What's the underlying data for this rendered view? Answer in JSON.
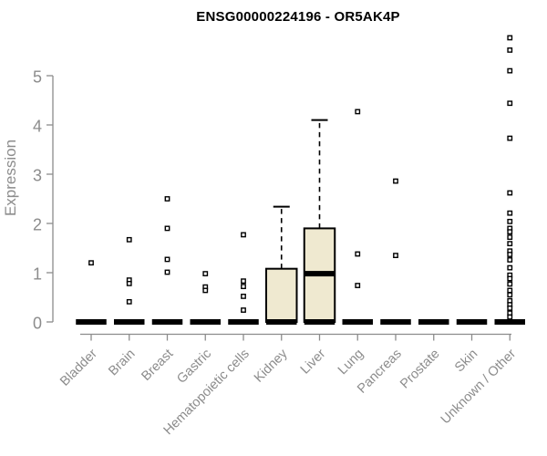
{
  "page": {
    "title": "ENSG00000224196 - OR5AK4P"
  },
  "chart_data": {
    "type": "boxplot",
    "title": "ENSG00000224196 - OR5AK4P",
    "ylabel": "Expression",
    "xlabel": "",
    "ylim": [
      0,
      5
    ],
    "yticks": [
      0,
      1,
      2,
      3,
      4,
      5
    ],
    "grid": false,
    "legend": null,
    "categories": [
      "Bladder",
      "Brain",
      "Breast",
      "Gastric",
      "Hematopoietic cells",
      "Kidney",
      "Liver",
      "Lung",
      "Pancreas",
      "Prostate",
      "Skin",
      "Unknown / Other"
    ],
    "series": [
      {
        "category": "Bladder",
        "q1": 0,
        "median": 0,
        "q3": 0,
        "whisker_low": 0,
        "whisker_high": 0,
        "outliers": [
          1.2
        ]
      },
      {
        "category": "Brain",
        "q1": 0,
        "median": 0,
        "q3": 0,
        "whisker_low": 0,
        "whisker_high": 0,
        "outliers": [
          1.67,
          0.85,
          0.78,
          0.41
        ]
      },
      {
        "category": "Breast",
        "q1": 0,
        "median": 0,
        "q3": 0,
        "whisker_low": 0,
        "whisker_high": 0,
        "outliers": [
          2.5,
          1.9,
          1.27,
          1.01
        ]
      },
      {
        "category": "Gastric",
        "q1": 0,
        "median": 0,
        "q3": 0,
        "whisker_low": 0,
        "whisker_high": 0,
        "outliers": [
          0.98,
          0.71,
          0.64
        ]
      },
      {
        "category": "Hematopoietic cells",
        "q1": 0,
        "median": 0,
        "q3": 0,
        "whisker_low": 0,
        "whisker_high": 0,
        "outliers": [
          1.77,
          0.83,
          0.72,
          0.52,
          0.24
        ]
      },
      {
        "category": "Kidney",
        "q1": 0,
        "median": 0,
        "q3": 1.08,
        "whisker_low": 0,
        "whisker_high": 2.34,
        "outliers": []
      },
      {
        "category": "Liver",
        "q1": 0,
        "median": 0.98,
        "q3": 1.9,
        "whisker_low": 0,
        "whisker_high": 4.1,
        "outliers": []
      },
      {
        "category": "Lung",
        "q1": 0,
        "median": 0,
        "q3": 0,
        "whisker_low": 0,
        "whisker_high": 0,
        "outliers": [
          4.27,
          1.38,
          0.74
        ]
      },
      {
        "category": "Pancreas",
        "q1": 0,
        "median": 0,
        "q3": 0,
        "whisker_low": 0,
        "whisker_high": 0,
        "outliers": [
          2.86,
          1.35
        ]
      },
      {
        "category": "Prostate",
        "q1": 0,
        "median": 0,
        "q3": 0,
        "whisker_low": 0,
        "whisker_high": 0,
        "outliers": []
      },
      {
        "category": "Skin",
        "q1": 0,
        "median": 0,
        "q3": 0,
        "whisker_low": 0,
        "whisker_high": 0,
        "outliers": []
      },
      {
        "category": "Unknown / Other",
        "q1": 0,
        "median": 0,
        "q3": 0,
        "whisker_low": 0,
        "whisker_high": 0,
        "outliers": [
          5.77,
          5.52,
          5.1,
          4.44,
          3.73,
          2.62,
          2.21,
          2.04,
          1.9,
          1.83,
          1.72,
          1.59,
          1.44,
          1.37,
          1.26,
          1.1,
          0.95,
          0.88,
          0.77,
          0.64,
          0.55,
          0.43,
          0.35,
          0.28,
          0.18,
          0.1
        ]
      }
    ],
    "colors": {
      "box_fill": "#EFE9D0",
      "box_stroke": "#000000",
      "median": "#000000",
      "outlier": "#000000",
      "axis": "#8C8C8C",
      "tick_label": "#8C8C8C",
      "title": "#000000"
    }
  }
}
